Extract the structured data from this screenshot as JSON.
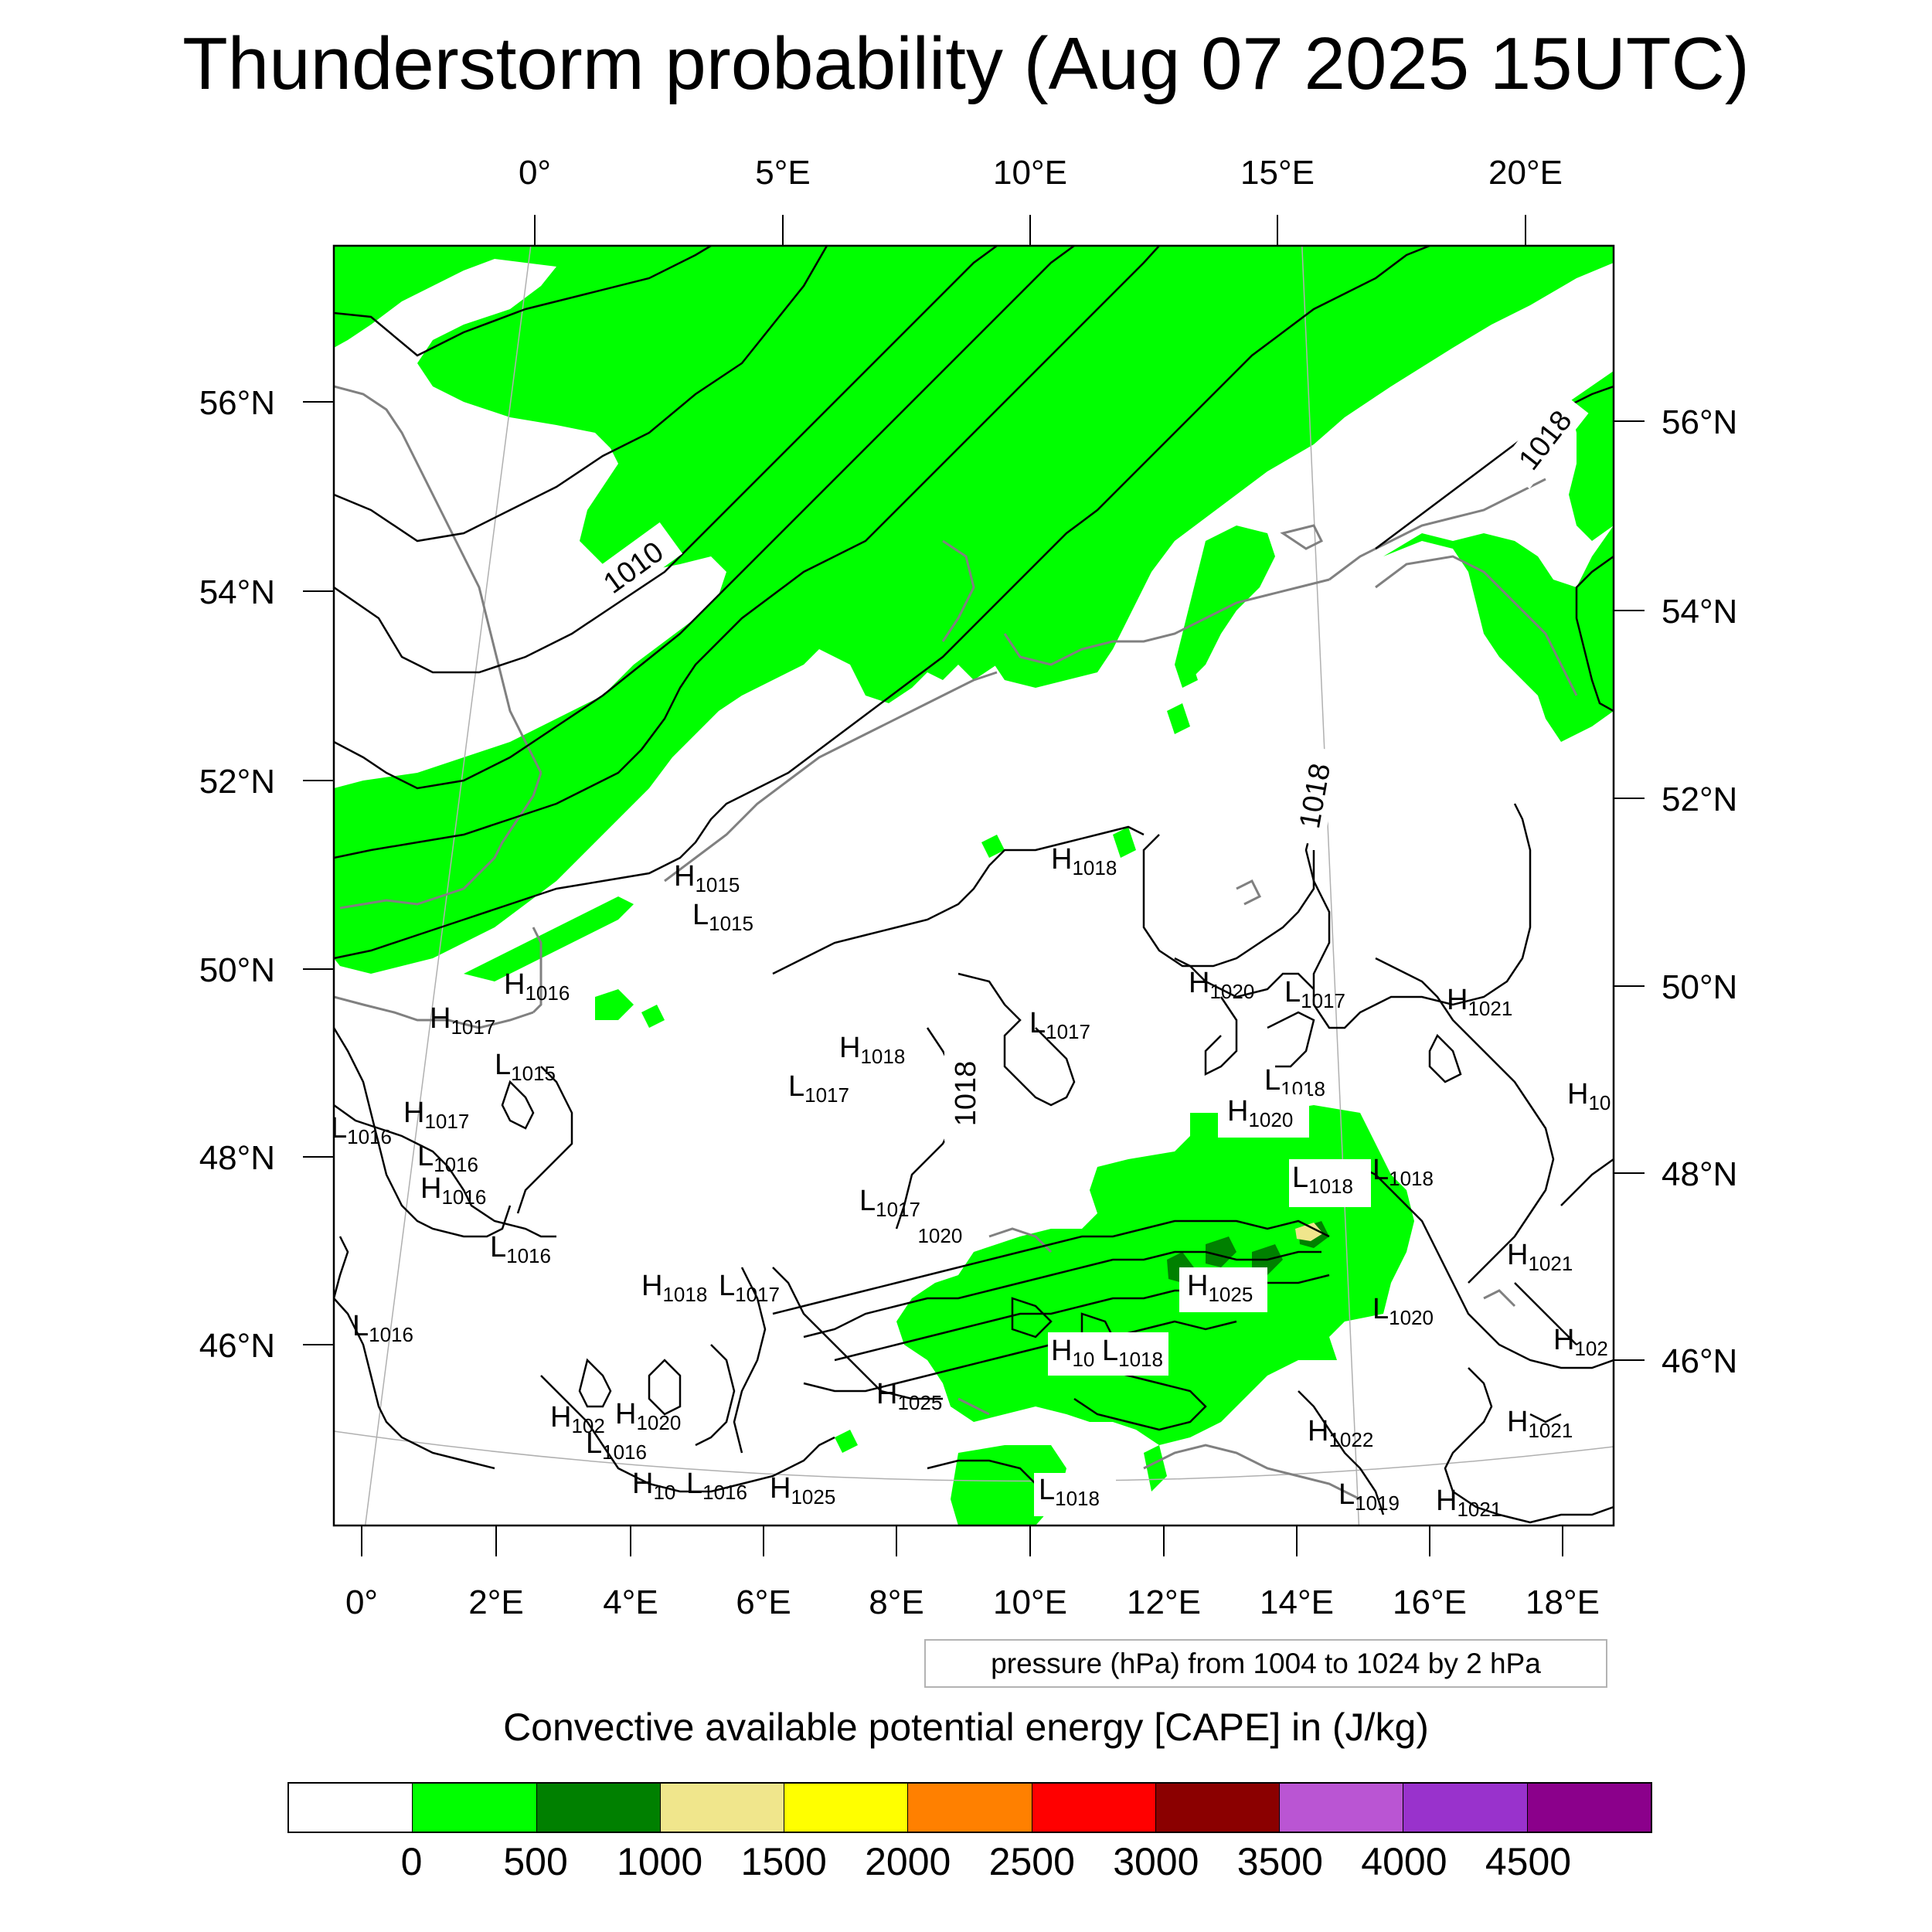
{
  "title": "Thunderstorm probability (Aug 07 2025 15UTC)",
  "top_axis_ticks": [
    "0°",
    "5°E",
    "10°E",
    "15°E",
    "20°E"
  ],
  "bottom_axis_ticks": [
    "0°",
    "2°E",
    "4°E",
    "6°E",
    "8°E",
    "10°E",
    "12°E",
    "14°E",
    "16°E",
    "18°E"
  ],
  "left_axis_ticks": [
    "56°N",
    "54°N",
    "52°N",
    "50°N",
    "48°N",
    "46°N"
  ],
  "right_axis_ticks": [
    "56°N",
    "54°N",
    "52°N",
    "50°N",
    "48°N",
    "46°N"
  ],
  "contour_labels": [
    "1010",
    "1018",
    "1018",
    "1018"
  ],
  "pressure_centers": [
    {
      "letter": "H",
      "value": "1015"
    },
    {
      "letter": "L",
      "value": "1015"
    },
    {
      "letter": "H",
      "value": "1018"
    },
    {
      "letter": "H",
      "value": "1016"
    },
    {
      "letter": "H",
      "value": "1017"
    },
    {
      "letter": "L",
      "value": "1015"
    },
    {
      "letter": "H",
      "value": "1017"
    },
    {
      "letter": "L",
      "value": "1016"
    },
    {
      "letter": "L",
      "value": "1016"
    },
    {
      "letter": "H",
      "value": "1016"
    },
    {
      "letter": "L",
      "value": "1016"
    },
    {
      "letter": "L",
      "value": "1016"
    },
    {
      "letter": "H",
      "value": "1018"
    },
    {
      "letter": "L",
      "value": "1017"
    },
    {
      "letter": "L",
      "value": "1017"
    },
    {
      "letter": "L",
      "value": "1017"
    },
    {
      "letter": "H",
      "value": "1020"
    },
    {
      "letter": "H",
      "value": "1018"
    },
    {
      "letter": "L",
      "value": "1017"
    },
    {
      "letter": "H",
      "value": "1020"
    },
    {
      "letter": "L",
      "value": "1017"
    },
    {
      "letter": "L",
      "value": "1018"
    },
    {
      "letter": "H",
      "value": "1020"
    },
    {
      "letter": "L",
      "value": "1018"
    },
    {
      "letter": "L",
      "value": "1018"
    },
    {
      "letter": "H",
      "value": "1021"
    },
    {
      "letter": "H",
      "value": "10"
    },
    {
      "letter": "H",
      "value": "1021"
    },
    {
      "letter": "H",
      "value": "1025"
    },
    {
      "letter": "L",
      "value": "1020"
    },
    {
      "letter": "H",
      "value": "10"
    },
    {
      "letter": "L",
      "value": "1018"
    },
    {
      "letter": "H",
      "value": "102"
    },
    {
      "letter": "H",
      "value": "1025"
    },
    {
      "letter": "H",
      "value": "102"
    },
    {
      "letter": "H",
      "value": "1020"
    },
    {
      "letter": "L",
      "value": "1016"
    },
    {
      "letter": "H",
      "value": "10"
    },
    {
      "letter": "L",
      "value": "1016"
    },
    {
      "letter": "H",
      "value": "1025"
    },
    {
      "letter": "H",
      "value": "1021"
    },
    {
      "letter": "H",
      "value": "1022"
    },
    {
      "letter": "L",
      "value": "1018"
    },
    {
      "letter": "L",
      "value": "1019"
    },
    {
      "letter": "H",
      "value": "1021"
    }
  ],
  "legend_text": "pressure (hPa) from 1004 to 1024 by 2 hPa",
  "colorbar": {
    "title": "Convective available potential energy [CAPE] in (J/kg)",
    "colors": [
      "#ffffff",
      "#00ff00",
      "#008000",
      "#f0e68c",
      "#ffff00",
      "#ff8000",
      "#ff0000",
      "#8b0000",
      "#ba55d3",
      "#9932cc",
      "#8b008b"
    ],
    "labels": [
      "0",
      "500",
      "1000",
      "1500",
      "2000",
      "2500",
      "3000",
      "3500",
      "4000",
      "4500"
    ]
  },
  "colors": {
    "cape_0_500": "#00ff00",
    "cape_500_1000": "#008000",
    "cape_1000_1500": "#f0e68c",
    "coastline": "#808080",
    "isobar": "#000000"
  }
}
